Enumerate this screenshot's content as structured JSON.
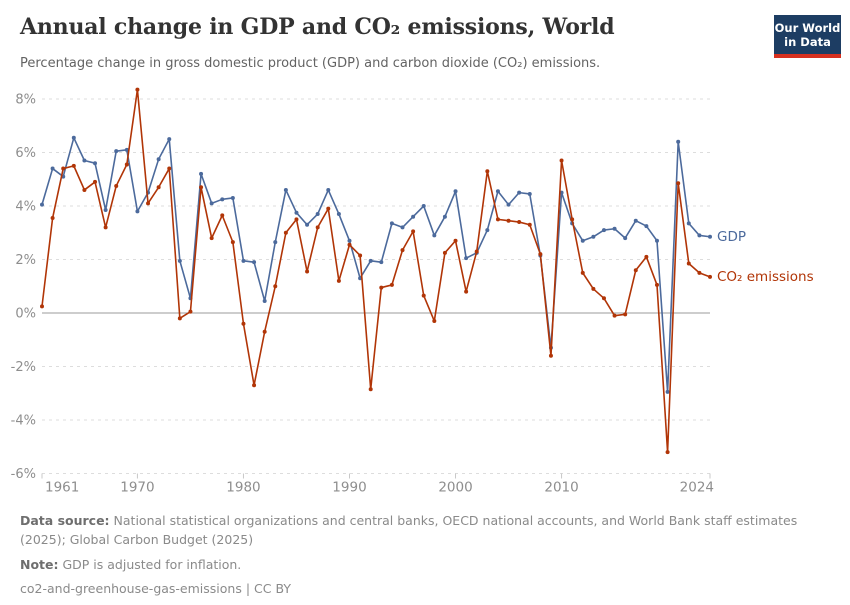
{
  "header": {
    "logo": {
      "line1": "Our World",
      "line2": "in Data"
    }
  },
  "chart_data": {
    "type": "line",
    "title": "Annual change in GDP and CO₂ emissions, World",
    "subtitle": "Percentage change in gross domestic product (GDP) and carbon dioxide (CO₂) emissions.",
    "xlabel": "",
    "ylabel": "",
    "ylim": [
      -6,
      8
    ],
    "yticks": [
      8,
      6,
      4,
      2,
      0,
      -2,
      -4,
      -6
    ],
    "ytick_suffix": "%",
    "xticks": [
      1961,
      1970,
      1980,
      1990,
      2000,
      2010,
      2024
    ],
    "grid": "horizontal-dashed",
    "legend_position": "right-of-line-end",
    "colors": {
      "grid": "#dddddd",
      "zero_line": "#9b9b9b",
      "tick_text": "#8e8e8e",
      "axis_tick": "#c8c8c8"
    },
    "x": [
      1961,
      1962,
      1963,
      1964,
      1965,
      1966,
      1967,
      1968,
      1969,
      1970,
      1971,
      1972,
      1973,
      1974,
      1975,
      1976,
      1977,
      1978,
      1979,
      1980,
      1981,
      1982,
      1983,
      1984,
      1985,
      1986,
      1987,
      1988,
      1989,
      1990,
      1991,
      1992,
      1993,
      1994,
      1995,
      1996,
      1997,
      1998,
      1999,
      2000,
      2001,
      2002,
      2003,
      2004,
      2005,
      2006,
      2007,
      2008,
      2009,
      2010,
      2011,
      2012,
      2013,
      2014,
      2015,
      2016,
      2017,
      2018,
      2019,
      2020,
      2021,
      2022,
      2023,
      2024
    ],
    "series": [
      {
        "key": "gdp",
        "name": "GDP",
        "color": "#4C6A9C",
        "values": [
          4.05,
          5.4,
          5.1,
          6.55,
          5.7,
          5.6,
          3.85,
          6.05,
          6.1,
          3.8,
          4.5,
          5.75,
          6.5,
          1.95,
          0.55,
          5.2,
          4.1,
          4.25,
          4.3,
          1.95,
          1.9,
          0.45,
          2.65,
          4.6,
          3.75,
          3.3,
          3.7,
          4.6,
          3.7,
          2.7,
          1.3,
          1.95,
          1.9,
          3.35,
          3.2,
          3.6,
          4.0,
          2.9,
          3.6,
          4.55,
          2.05,
          2.25,
          3.1,
          4.55,
          4.05,
          4.5,
          4.45,
          2.15,
          -1.3,
          4.5,
          3.35,
          2.7,
          2.85,
          3.1,
          3.15,
          2.8,
          3.45,
          3.25,
          2.7,
          -2.95,
          6.4,
          3.35,
          2.9,
          2.85
        ]
      },
      {
        "key": "co2",
        "name": "CO₂ emissions",
        "color": "#B13507",
        "values": [
          0.25,
          3.55,
          5.4,
          5.5,
          4.6,
          4.9,
          3.2,
          4.75,
          5.55,
          8.35,
          4.1,
          4.7,
          5.4,
          -0.2,
          0.05,
          4.7,
          2.8,
          3.65,
          2.65,
          -0.4,
          -2.7,
          -0.7,
          1.0,
          3.0,
          3.5,
          1.55,
          3.2,
          3.9,
          1.2,
          2.55,
          2.15,
          -2.85,
          0.95,
          1.05,
          2.35,
          3.05,
          0.65,
          -0.3,
          2.25,
          2.7,
          0.8,
          2.3,
          5.3,
          3.5,
          3.45,
          3.4,
          3.3,
          2.2,
          -1.6,
          5.7,
          3.5,
          1.5,
          0.9,
          0.55,
          -0.1,
          -0.05,
          1.6,
          2.1,
          1.05,
          -5.2,
          4.85,
          1.85,
          1.5,
          1.35
        ]
      }
    ]
  },
  "footer": {
    "data_source_label": "Data source:",
    "data_source_text": " National statistical organizations and central banks, OECD national accounts, and World Bank staff estimates (2025); Global Carbon Budget (2025)",
    "note_label": "Note:",
    "note_text": " GDP is adjusted for inflation.",
    "license": "co2-and-greenhouse-gas-emissions | CC BY"
  }
}
